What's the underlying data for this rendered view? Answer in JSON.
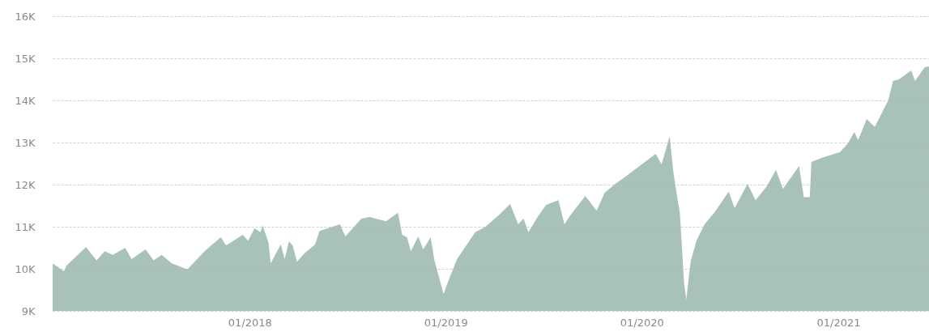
{
  "chart_data": {
    "type": "area",
    "x": [
      "2016-12-30",
      "2017-01-20",
      "2017-01-25",
      "2017-02-15",
      "2017-03-02",
      "2017-03-11",
      "2017-03-22",
      "2017-04-06",
      "2017-04-21",
      "2017-05-14",
      "2017-05-26",
      "2017-06-21",
      "2017-07-06",
      "2017-07-21",
      "2017-08-09",
      "2017-09-04",
      "2017-09-08",
      "2017-10-09",
      "2017-11-08",
      "2017-11-18",
      "2017-12-19",
      "2017-12-29",
      "2018-01-10",
      "2018-01-21",
      "2018-01-25",
      "2018-02-05",
      "2018-02-09",
      "2018-02-28",
      "2018-03-07",
      "2018-03-15",
      "2018-03-22",
      "2018-03-30",
      "2018-04-14",
      "2018-05-03",
      "2018-05-11",
      "2018-06-18",
      "2018-06-28",
      "2018-07-28",
      "2018-08-12",
      "2018-09-12",
      "2018-10-04",
      "2018-10-12",
      "2018-10-21",
      "2018-10-28",
      "2018-11-11",
      "2018-11-20",
      "2018-12-04",
      "2018-12-11",
      "2018-12-28",
      "2019-01-04",
      "2019-01-22",
      "2019-02-25",
      "2019-03-16",
      "2019-04-11",
      "2019-05-01",
      "2019-05-16",
      "2019-05-26",
      "2019-06-04",
      "2019-06-22",
      "2019-07-07",
      "2019-07-30",
      "2019-08-10",
      "2019-08-22",
      "2019-09-18",
      "2019-10-09",
      "2019-10-24",
      "2019-11-13",
      "2019-12-02",
      "2019-12-28",
      "2020-01-27",
      "2020-02-07",
      "2020-02-22",
      "2020-02-29",
      "2020-03-08",
      "2020-03-12",
      "2020-03-20",
      "2020-03-24",
      "2020-04-01",
      "2020-04-12",
      "2020-04-27",
      "2020-05-15",
      "2020-06-11",
      "2020-06-22",
      "2020-07-16",
      "2020-07-31",
      "2020-08-21",
      "2020-09-07",
      "2020-09-20",
      "2020-10-20",
      "2020-10-29",
      "2020-11-09",
      "2020-11-12",
      "2020-12-09",
      "2021-01-04",
      "2021-01-19",
      "2021-01-31",
      "2021-02-07",
      "2021-02-23",
      "2021-03-10",
      "2021-04-04",
      "2021-04-13",
      "2021-04-24",
      "2021-05-17",
      "2021-05-24",
      "2021-06-11",
      "2021-06-19"
    ],
    "series": [
      {
        "color": "#a8c1bb",
        "values": [
          10130,
          9940,
          10080,
          10330,
          10520,
          10370,
          10200,
          10420,
          10330,
          10500,
          10230,
          10460,
          10200,
          10330,
          10130,
          10000,
          10000,
          10420,
          10750,
          10560,
          10810,
          10670,
          10960,
          10870,
          11030,
          10620,
          10130,
          10580,
          10230,
          10650,
          10560,
          10170,
          10380,
          10580,
          10900,
          11060,
          10770,
          11190,
          11230,
          11130,
          11330,
          10810,
          10750,
          10420,
          10770,
          10460,
          10750,
          10200,
          9400,
          9650,
          10230,
          10870,
          11000,
          11290,
          11540,
          11060,
          11190,
          10870,
          11250,
          11520,
          11630,
          11060,
          11290,
          11730,
          11380,
          11810,
          12020,
          12190,
          12440,
          12730,
          12480,
          13150,
          12290,
          11630,
          11330,
          9650,
          9270,
          10170,
          10670,
          11060,
          11330,
          11830,
          11440,
          12020,
          11630,
          11960,
          12350,
          11900,
          12440,
          11700,
          11700,
          12540,
          12670,
          12770,
          12980,
          13250,
          13060,
          13560,
          13370,
          14000,
          14460,
          14500,
          14710,
          14460,
          14790,
          14810
        ]
      }
    ],
    "xlim": [
      "2016-12-30",
      "2021-06-19"
    ],
    "xticks": [
      {
        "value": "2018-01-01",
        "label": "01/2018"
      },
      {
        "value": "2019-01-01",
        "label": "01/2019"
      },
      {
        "value": "2020-01-01",
        "label": "01/2020"
      },
      {
        "value": "2021-01-01",
        "label": "01/2021"
      }
    ],
    "ylim": [
      9000,
      16000
    ],
    "yticks": [
      {
        "value": 9000,
        "label": "9K"
      },
      {
        "value": 10000,
        "label": "10K"
      },
      {
        "value": 11000,
        "label": "11K"
      },
      {
        "value": 12000,
        "label": "12K"
      },
      {
        "value": 13000,
        "label": "13K"
      },
      {
        "value": 14000,
        "label": "14K"
      },
      {
        "value": 15000,
        "label": "15K"
      },
      {
        "value": 16000,
        "label": "16K"
      }
    ],
    "grid": "y"
  }
}
